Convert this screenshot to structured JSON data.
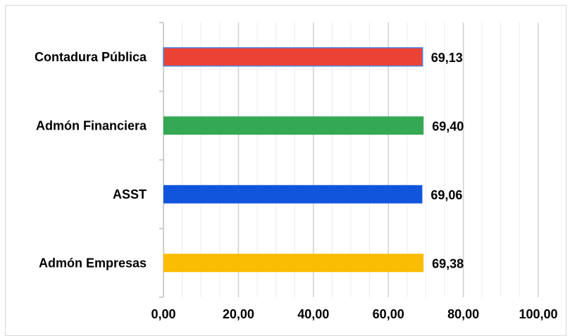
{
  "chart_data": {
    "type": "bar",
    "orientation": "horizontal",
    "categories": [
      "Contadura Pública",
      "Admón Financiera",
      "ASST",
      "Admón Empresas"
    ],
    "values": [
      69.13,
      69.4,
      69.06,
      69.38
    ],
    "value_labels": [
      "69,13",
      "69,40",
      "69,06",
      "69,38"
    ],
    "colors": [
      "#ea4335",
      "#34a853",
      "#1155dd",
      "#fbbc04"
    ],
    "xlim": [
      0,
      100
    ],
    "x_ticks": [
      0,
      20,
      40,
      60,
      80,
      100
    ],
    "x_tick_labels": [
      "0,00",
      "20,00",
      "40,00",
      "60,00",
      "80,00",
      "100,00"
    ],
    "grid": true,
    "title": "",
    "xlabel": "",
    "ylabel": ""
  }
}
